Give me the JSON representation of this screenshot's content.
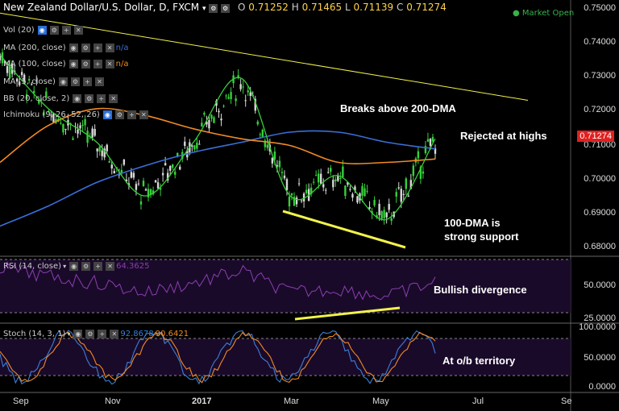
{
  "header": {
    "title": "New Zealand Dollar/U.S. Dollar, D, FXCM",
    "open_label": "O",
    "open": "0.71252",
    "high_label": "H",
    "high": "0.71465",
    "low_label": "L",
    "low": "0.71139",
    "close_label": "C",
    "close": "0.71274",
    "market_status": "Market Open"
  },
  "indicators": [
    {
      "label": "Vol (20)",
      "value": ""
    },
    {
      "label": "MA (200, close)",
      "value": "n/a"
    },
    {
      "label": "MA (100, close)",
      "value": "n/a"
    },
    {
      "label": "MA (5, close)",
      "value": ""
    },
    {
      "label": "BB (20, close, 2)",
      "value": ""
    },
    {
      "label": "Ichimoku (9, 26, 52, 26)",
      "value": ""
    }
  ],
  "price_axis": [
    "0.75000",
    "0.74000",
    "0.73000",
    "0.72000",
    "0.71000",
    "0.70000",
    "0.69000",
    "0.68000"
  ],
  "current_price": "0.71274",
  "rsi": {
    "label": "RSI (14, close)",
    "value": "64.3625",
    "axis": [
      "50.0000",
      "25.0000"
    ]
  },
  "stoch": {
    "label": "Stoch (14, 3, 1)",
    "value1": "92.8678",
    "value2": "90.6421",
    "axis": [
      "100.0000",
      "50.0000",
      "0.0000"
    ]
  },
  "x_axis": [
    "Sep",
    "Nov",
    "2017",
    "Mar",
    "May",
    "Jul",
    "Se"
  ],
  "annotations": {
    "breaks": "Breaks above 200-DMA",
    "rejected": "Rejected at highs",
    "support_line1": "100-DMA is",
    "support_line2": "strong support",
    "divergence": "Bullish divergence",
    "ob": "At o/b territory"
  },
  "colors": {
    "ma200": "#3a6fd8",
    "ma100": "#f08a24",
    "ma5": "#36d03a",
    "rsi": "#8a3fb0",
    "stoch_k": "#3a7fd8",
    "stoch_d": "#f08a24",
    "trendline": "#f2f24a",
    "price_tag": "#e02020"
  },
  "chart_data": {
    "type": "line",
    "title": "New Zealand Dollar/U.S. Dollar, D, FXCM",
    "xlabel": "",
    "ylabel": "",
    "ylim": [
      0.678,
      0.752
    ],
    "x_ticks": [
      "Sep",
      "Nov",
      "2017",
      "Mar",
      "May",
      "Jul",
      "Se"
    ],
    "x": [
      "2016-09",
      "2016-10",
      "2016-11",
      "2016-12",
      "2017-01",
      "2017-02",
      "2017-03",
      "2017-04",
      "2017-05",
      "2017-06"
    ],
    "series": [
      {
        "values": [
          0.738,
          0.722,
          0.712,
          0.696,
          0.712,
          0.731,
          0.696,
          0.702,
          0.689,
          0.713
        ]
      },
      {
        "values": [
          0.687,
          0.693,
          0.7,
          0.705,
          0.709,
          0.712,
          0.715,
          0.715,
          0.712,
          0.71
        ]
      },
      {
        "values": [
          0.706,
          0.717,
          0.722,
          0.72,
          0.716,
          0.713,
          0.711,
          0.706,
          0.706,
          0.707
        ]
      }
    ],
    "grid": false
  }
}
